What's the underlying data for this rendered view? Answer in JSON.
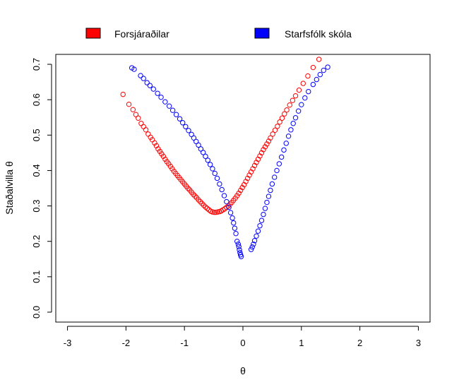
{
  "chart_data": {
    "type": "scatter",
    "title": "",
    "xlabel": "θ",
    "ylabel": "Staðalvilla θ",
    "xlim": [
      -3.2,
      3.2
    ],
    "ylim": [
      -0.028,
      0.728
    ],
    "xticks": [
      -3,
      -2,
      -1,
      0,
      1,
      2,
      3
    ],
    "yticks": [
      0.0,
      0.1,
      0.2,
      0.3,
      0.4,
      0.5,
      0.6,
      0.7
    ],
    "xtick_labels": [
      "-3",
      "-2",
      "-1",
      "0",
      "1",
      "2",
      "3"
    ],
    "ytick_labels": [
      "0.0",
      "0.1",
      "0.2",
      "0.3",
      "0.4",
      "0.5",
      "0.6",
      "0.7"
    ],
    "grid": false,
    "legend_position": "top",
    "marker": "open-circle",
    "series": [
      {
        "name": "Forsjáraðilar",
        "color": "#ff0000",
        "points": [
          [
            -2.05,
            0.615
          ],
          [
            -1.95,
            0.587
          ],
          [
            -1.88,
            0.572
          ],
          [
            -1.83,
            0.558
          ],
          [
            -1.79,
            0.548
          ],
          [
            -1.74,
            0.533
          ],
          [
            -1.7,
            0.524
          ],
          [
            -1.66,
            0.515
          ],
          [
            -1.62,
            0.503
          ],
          [
            -1.58,
            0.494
          ],
          [
            -1.55,
            0.487
          ],
          [
            -1.51,
            0.478
          ],
          [
            -1.48,
            0.47
          ],
          [
            -1.45,
            0.461
          ],
          [
            -1.42,
            0.454
          ],
          [
            -1.39,
            0.447
          ],
          [
            -1.36,
            0.44
          ],
          [
            -1.33,
            0.432
          ],
          [
            -1.3,
            0.425
          ],
          [
            -1.27,
            0.419
          ],
          [
            -1.24,
            0.412
          ],
          [
            -1.21,
            0.405
          ],
          [
            -1.18,
            0.398
          ],
          [
            -1.15,
            0.392
          ],
          [
            -1.12,
            0.386
          ],
          [
            -1.09,
            0.38
          ],
          [
            -1.06,
            0.374
          ],
          [
            -1.03,
            0.368
          ],
          [
            -1.0,
            0.362
          ],
          [
            -0.97,
            0.356
          ],
          [
            -0.94,
            0.35
          ],
          [
            -0.91,
            0.345
          ],
          [
            -0.88,
            0.339
          ],
          [
            -0.85,
            0.333
          ],
          [
            -0.82,
            0.328
          ],
          [
            -0.79,
            0.323
          ],
          [
            -0.76,
            0.317
          ],
          [
            -0.73,
            0.312
          ],
          [
            -0.7,
            0.307
          ],
          [
            -0.67,
            0.302
          ],
          [
            -0.64,
            0.297
          ],
          [
            -0.61,
            0.293
          ],
          [
            -0.58,
            0.289
          ],
          [
            -0.55,
            0.285
          ],
          [
            -0.52,
            0.283
          ],
          [
            -0.49,
            0.282
          ],
          [
            -0.46,
            0.282
          ],
          [
            -0.43,
            0.283
          ],
          [
            -0.4,
            0.284
          ],
          [
            -0.37,
            0.286
          ],
          [
            -0.34,
            0.289
          ],
          [
            -0.31,
            0.292
          ],
          [
            -0.28,
            0.296
          ],
          [
            -0.25,
            0.3
          ],
          [
            -0.22,
            0.305
          ],
          [
            -0.19,
            0.31
          ],
          [
            -0.16,
            0.316
          ],
          [
            -0.13,
            0.322
          ],
          [
            -0.1,
            0.329
          ],
          [
            -0.07,
            0.336
          ],
          [
            -0.04,
            0.344
          ],
          [
            -0.01,
            0.352
          ],
          [
            0.02,
            0.36
          ],
          [
            0.05,
            0.369
          ],
          [
            0.08,
            0.378
          ],
          [
            0.11,
            0.387
          ],
          [
            0.14,
            0.396
          ],
          [
            0.17,
            0.405
          ],
          [
            0.2,
            0.414
          ],
          [
            0.23,
            0.423
          ],
          [
            0.26,
            0.432
          ],
          [
            0.29,
            0.441
          ],
          [
            0.32,
            0.45
          ],
          [
            0.35,
            0.459
          ],
          [
            0.38,
            0.467
          ],
          [
            0.41,
            0.475
          ],
          [
            0.44,
            0.483
          ],
          [
            0.47,
            0.492
          ],
          [
            0.51,
            0.503
          ],
          [
            0.55,
            0.514
          ],
          [
            0.59,
            0.525
          ],
          [
            0.63,
            0.537
          ],
          [
            0.67,
            0.548
          ],
          [
            0.71,
            0.56
          ],
          [
            0.75,
            0.571
          ],
          [
            0.8,
            0.585
          ],
          [
            0.85,
            0.598
          ],
          [
            0.9,
            0.611
          ],
          [
            0.96,
            0.627
          ],
          [
            1.03,
            0.646
          ],
          [
            1.11,
            0.667
          ],
          [
            1.2,
            0.691
          ],
          [
            1.3,
            0.714
          ]
        ]
      },
      {
        "name": "Starfsfólk skóla",
        "color": "#0000ff",
        "points": [
          [
            -1.9,
            0.69
          ],
          [
            -1.86,
            0.686
          ],
          [
            -1.75,
            0.668
          ],
          [
            -1.7,
            0.66
          ],
          [
            -1.64,
            0.648
          ],
          [
            -1.59,
            0.64
          ],
          [
            -1.53,
            0.63
          ],
          [
            -1.46,
            0.618
          ],
          [
            -1.4,
            0.607
          ],
          [
            -1.33,
            0.594
          ],
          [
            -1.26,
            0.582
          ],
          [
            -1.2,
            0.57
          ],
          [
            -1.14,
            0.558
          ],
          [
            -1.08,
            0.546
          ],
          [
            -1.03,
            0.535
          ],
          [
            -0.98,
            0.524
          ],
          [
            -0.93,
            0.513
          ],
          [
            -0.88,
            0.502
          ],
          [
            -0.84,
            0.492
          ],
          [
            -0.8,
            0.482
          ],
          [
            -0.76,
            0.472
          ],
          [
            -0.72,
            0.461
          ],
          [
            -0.68,
            0.451
          ],
          [
            -0.64,
            0.44
          ],
          [
            -0.6,
            0.429
          ],
          [
            -0.56,
            0.417
          ],
          [
            -0.52,
            0.405
          ],
          [
            -0.48,
            0.392
          ],
          [
            -0.44,
            0.378
          ],
          [
            -0.4,
            0.362
          ],
          [
            -0.36,
            0.346
          ],
          [
            -0.32,
            0.329
          ],
          [
            -0.28,
            0.312
          ],
          [
            -0.24,
            0.296
          ],
          [
            -0.21,
            0.281
          ],
          [
            -0.18,
            0.266
          ],
          [
            -0.16,
            0.252
          ],
          [
            -0.14,
            0.237
          ],
          [
            -0.12,
            0.222
          ],
          [
            -0.1,
            0.2
          ],
          [
            -0.08,
            0.192
          ],
          [
            -0.07,
            0.185
          ],
          [
            -0.06,
            0.176
          ],
          [
            -0.05,
            0.168
          ],
          [
            -0.04,
            0.162
          ],
          [
            -0.03,
            0.157
          ],
          [
            0.14,
            0.177
          ],
          [
            0.16,
            0.184
          ],
          [
            0.18,
            0.192
          ],
          [
            0.2,
            0.202
          ],
          [
            0.23,
            0.215
          ],
          [
            0.26,
            0.229
          ],
          [
            0.29,
            0.244
          ],
          [
            0.32,
            0.259
          ],
          [
            0.35,
            0.276
          ],
          [
            0.38,
            0.293
          ],
          [
            0.41,
            0.31
          ],
          [
            0.44,
            0.327
          ],
          [
            0.47,
            0.344
          ],
          [
            0.5,
            0.362
          ],
          [
            0.54,
            0.381
          ],
          [
            0.58,
            0.4
          ],
          [
            0.62,
            0.419
          ],
          [
            0.66,
            0.438
          ],
          [
            0.7,
            0.458
          ],
          [
            0.74,
            0.477
          ],
          [
            0.78,
            0.497
          ],
          [
            0.82,
            0.515
          ],
          [
            0.86,
            0.533
          ],
          [
            0.9,
            0.549
          ],
          [
            0.95,
            0.568
          ],
          [
            1.0,
            0.586
          ],
          [
            1.06,
            0.605
          ],
          [
            1.12,
            0.623
          ],
          [
            1.2,
            0.643
          ],
          [
            1.26,
            0.657
          ],
          [
            1.32,
            0.671
          ],
          [
            1.38,
            0.683
          ],
          [
            1.45,
            0.692
          ]
        ]
      }
    ]
  }
}
